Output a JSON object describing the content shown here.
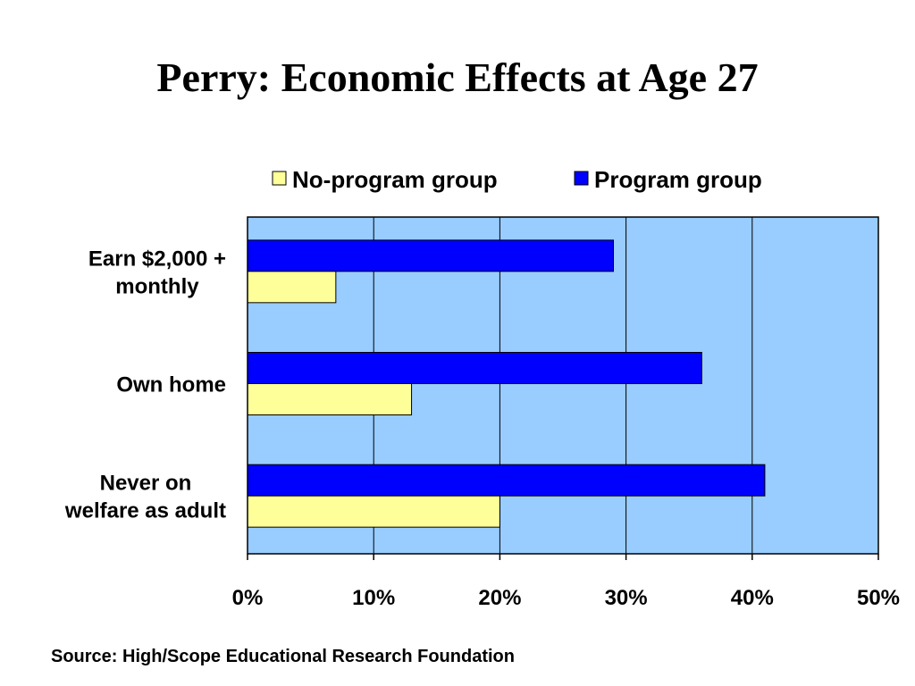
{
  "slide": {
    "title": "Perry: Economic Effects at Age 27",
    "source": "Source: High/Scope Educational Research Foundation"
  },
  "chart_data": {
    "type": "bar",
    "orientation": "horizontal",
    "title": "Perry: Economic Effects at Age 27",
    "categories": [
      "Earn $2,000 + monthly",
      "Own home",
      "Never on welfare as adult"
    ],
    "category_lines": [
      [
        "Earn $2,000 +",
        "monthly"
      ],
      [
        "Own home"
      ],
      [
        "Never on",
        "welfare as adult"
      ]
    ],
    "series": [
      {
        "name": "No-program group",
        "values": [
          7,
          13,
          20
        ],
        "color": "#ffff99"
      },
      {
        "name": "Program group",
        "values": [
          29,
          36,
          41
        ],
        "color": "#0000ff"
      }
    ],
    "xlim": [
      0,
      50
    ],
    "xticks": [
      "0%",
      "10%",
      "20%",
      "30%",
      "40%",
      "50%"
    ],
    "xtick_values": [
      0,
      10,
      20,
      30,
      40,
      50
    ],
    "unit": "%",
    "grid": true,
    "legend": "top",
    "plot_background": "#99ccff"
  }
}
